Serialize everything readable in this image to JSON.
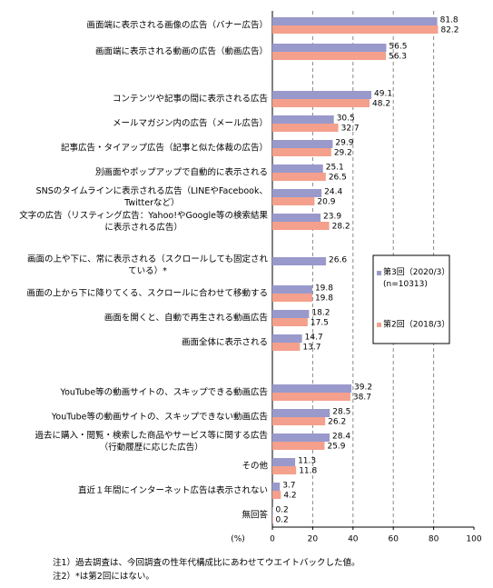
{
  "chart_data": {
    "type": "hbar",
    "categories": [
      "画面端に表示される画像の広告（バナー広告）",
      "画面端に表示される動画の広告（動画広告）",
      "コンテンツや記事の間に表示される広告",
      "メールマガジン内の広告（メール広告）",
      "記事広告・タイアップ広告（記事と似た体裁の広告）",
      "別画面やポップアップで自動的に表示される",
      "SNSのタイムラインに表示される広告（LINEやFacebook、\nTwitterなど）",
      "文字の広告（リスティング広告：Yahoo!やGoogle等の検索結果\nに表示される広告）",
      "画面の上や下に、常に表示される（スクロールしても固定され\nている）*",
      "画面の上から下に降りてくる、スクロールに合わせて移動する",
      "画面を開くと、自動で再生される動画広告",
      "画面全体に表示される",
      "YouTube等の動画サイトの、スキップできる動画広告",
      "YouTube等の動画サイトの、スキップできない動画広告",
      "過去に購入・閲覧・検索した商品やサービス等に関する広告\n（行動履歴に応じた広告）",
      "その他",
      "直近１年間にインターネット広告は表示されない",
      "無回答"
    ],
    "series": [
      {
        "name": "第3回（2020/3）\n(n=10313)",
        "color": "#9999cc",
        "values": [
          81.8,
          56.5,
          49.1,
          30.5,
          29.9,
          25.1,
          24.4,
          23.9,
          26.6,
          19.8,
          18.2,
          14.7,
          39.2,
          28.5,
          28.4,
          11.3,
          3.7,
          0.2
        ]
      },
      {
        "name": "第2回（2018/3）",
        "color": "#f4a08c",
        "values": [
          82.2,
          56.3,
          48.2,
          32.7,
          29.2,
          26.5,
          20.9,
          28.2,
          null,
          19.8,
          17.5,
          13.7,
          38.7,
          26.2,
          25.9,
          11.8,
          4.2,
          0.2
        ]
      }
    ],
    "xlabel": "(%)",
    "xlim": [
      0,
      100
    ],
    "xticks": [
      0,
      20,
      40,
      60,
      80,
      100
    ],
    "grid": true,
    "notes": [
      "注1）過去調査は、今回調査の性年代構成比にあわせてウエイトバックした値。",
      "注2）*は第2回にはない。"
    ]
  }
}
